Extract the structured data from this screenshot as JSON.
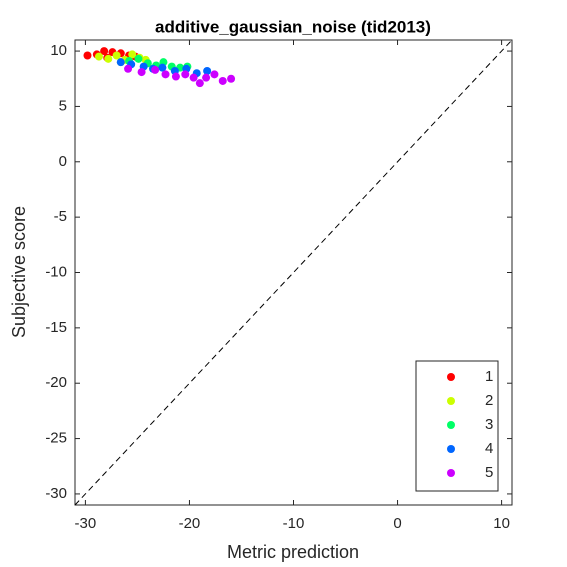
{
  "chart_data": {
    "type": "scatter",
    "title": "additive_gaussian_noise (tid2013)",
    "x_label": "Metric prediction",
    "y_label": "Subjective score",
    "xlim": [
      -31,
      11
    ],
    "ylim": [
      -31,
      11
    ],
    "xticks": [
      -30,
      -20,
      -10,
      0,
      10
    ],
    "yticks": [
      -30,
      -25,
      -20,
      -15,
      -10,
      -5,
      0,
      5,
      10
    ],
    "legend": "bottom-right",
    "series": [
      {
        "name": "1",
        "color": "#ff0000",
        "x": [
          -29.8,
          -28.9,
          -28.2,
          -27.4,
          -26.6,
          -25.8,
          -25.2,
          -27.9
        ],
        "values": [
          9.6,
          9.7,
          10.0,
          9.9,
          9.8,
          9.6,
          9.5,
          9.4
        ]
      },
      {
        "name": "2",
        "color": "#ccff00",
        "x": [
          -28.7,
          -27.8,
          -27.0,
          -26.2,
          -25.5,
          -24.8,
          -24.2,
          -26.6
        ],
        "values": [
          9.5,
          9.3,
          9.6,
          9.2,
          9.7,
          9.4,
          9.2,
          9.0
        ]
      },
      {
        "name": "3",
        "color": "#00ff66",
        "x": [
          -25.8,
          -24.9,
          -24.0,
          -23.2,
          -22.5,
          -21.7,
          -20.9,
          -20.2
        ],
        "values": [
          9.1,
          9.3,
          8.9,
          8.7,
          9.0,
          8.6,
          8.5,
          8.6
        ]
      },
      {
        "name": "4",
        "color": "#0066ff",
        "x": [
          -26.6,
          -25.6,
          -24.4,
          -23.5,
          -22.6,
          -21.4,
          -20.3,
          -19.3,
          -18.3
        ],
        "values": [
          9.0,
          8.8,
          8.6,
          8.4,
          8.5,
          8.2,
          8.4,
          8.0,
          8.2
        ]
      },
      {
        "name": "5",
        "color": "#cc00ff",
        "x": [
          -25.9,
          -24.6,
          -23.3,
          -22.3,
          -21.3,
          -20.4,
          -19.6,
          -19.0,
          -18.4,
          -17.6,
          -16.8,
          -16.0
        ],
        "values": [
          8.4,
          8.1,
          8.3,
          7.9,
          7.7,
          7.9,
          7.6,
          7.1,
          7.6,
          7.9,
          7.3,
          7.5
        ]
      }
    ]
  }
}
